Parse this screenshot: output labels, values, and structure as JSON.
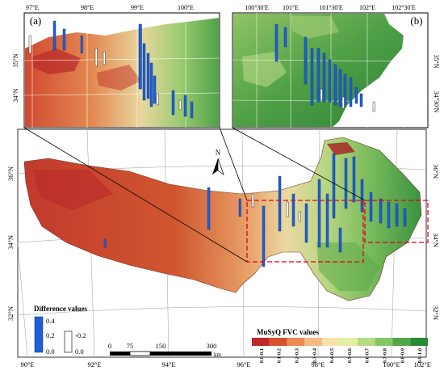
{
  "main_map": {
    "lon_ticks_bottom": [
      "90°E",
      "92°E",
      "94°E",
      "96°E",
      "98°E",
      "100°E",
      "102°E"
    ],
    "lat_ticks_left": [
      "36°N",
      "34°N",
      "32°N"
    ],
    "lat_ticks_right": [
      "36°N",
      "34°N",
      "32°N"
    ],
    "north_arrow_label": "N"
  },
  "inset_a": {
    "label": "(a)",
    "lon_ticks_top": [
      "97°E",
      "98°E",
      "99°E",
      "100°E"
    ],
    "lat_ticks_left": [
      "35°N",
      "34°N"
    ]
  },
  "inset_b": {
    "label": "(b)",
    "lon_ticks_top": [
      "100°30'E",
      "101°E",
      "101°30'E",
      "102°E",
      "102°30'E"
    ],
    "lat_ticks_right": [
      "35°N",
      "34°30'N"
    ]
  },
  "difference_legend": {
    "title": "Difference values",
    "positive_labels": [
      "0.4",
      "0.2",
      "0.0"
    ],
    "negative_labels": [
      "-0.2",
      "0.0"
    ],
    "positive_color": "#1f5fd6",
    "negative_color": "#ffffff"
  },
  "scale_bar": {
    "labels": [
      "0",
      "75",
      "150",
      "300"
    ],
    "unit": "km"
  },
  "fvc_legend": {
    "title": "MuSyQ FVC values",
    "classes": [
      "0.0-0.1",
      "0.1-0.2",
      "0.2-0.3",
      "0.3-0.4",
      "0.4-0.5",
      "0.5-0.6",
      "0.6-0.7",
      "0.7-0.8",
      "0.8-0.9",
      "0.9-1.0"
    ],
    "colors": [
      "#c0282a",
      "#d8502e",
      "#eb8a52",
      "#f4bb82",
      "#f5e2ad",
      "#e4eea4",
      "#b6dc82",
      "#86c564",
      "#53a648",
      "#2b8a36"
    ]
  }
}
